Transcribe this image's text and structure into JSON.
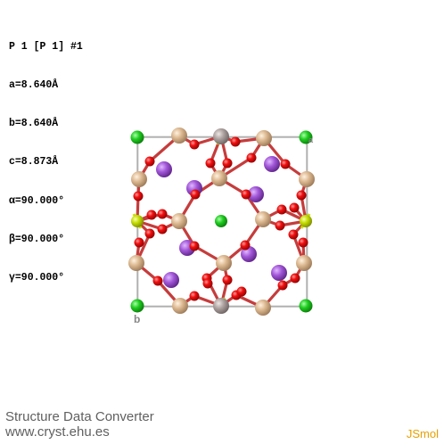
{
  "cell_info": {
    "space_group": "P 1 [P 1] #1",
    "a": "a=8.640Å",
    "b": "b=8.640Å",
    "c": "c=8.873Å",
    "alpha": "α=90.000°",
    "beta": "β=90.000°",
    "gamma": "γ=90.000°"
  },
  "axis_labels": {
    "b": "b",
    "a": "a"
  },
  "footer": {
    "title": "Structure Data Converter",
    "url": "www.cryst.ehu.es",
    "viewer": "JSmol"
  },
  "colors": {
    "background": "#ffffff",
    "cell_edge": "#909090",
    "oxygen": "#e60000",
    "si": "#d8b48a",
    "al": "#a9a09e",
    "na": "#a855d9",
    "cl": "#22cc22",
    "s": "#c8e000",
    "bond": "#c84040",
    "footer_text": "#606060",
    "jsmol": "#e8a000"
  },
  "icons": {
    "oxygen": "red-sphere",
    "silicon": "tan-sphere",
    "aluminium": "grey-sphere",
    "sodium": "purple-sphere",
    "chlorine": "green-sphere",
    "sulfur": "yellow-sphere"
  }
}
